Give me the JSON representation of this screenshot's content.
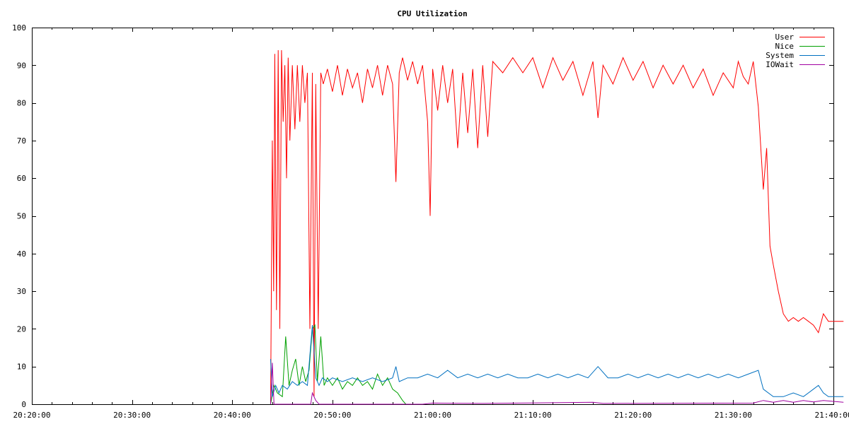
{
  "chart_data": {
    "type": "line",
    "title": "CPU Utilization",
    "xlabel": "",
    "ylabel": "",
    "xlim": [
      "20:20:00",
      "21:40:00"
    ],
    "ylim": [
      0,
      100
    ],
    "x_ticks": [
      "20:20:00",
      "20:30:00",
      "20:40:00",
      "20:50:00",
      "21:00:00",
      "21:10:00",
      "21:20:00",
      "21:30:00",
      "21:40:00"
    ],
    "y_ticks": [
      0,
      10,
      20,
      30,
      40,
      50,
      60,
      70,
      80,
      90,
      100
    ],
    "grid": false,
    "legend_position": "top-right",
    "series": [
      {
        "name": "User",
        "color": "#ff0000",
        "points": [
          [
            "20:43:50",
            0
          ],
          [
            "20:44:00",
            70
          ],
          [
            "20:44:08",
            30
          ],
          [
            "20:44:15",
            93
          ],
          [
            "20:44:25",
            25
          ],
          [
            "20:44:35",
            94
          ],
          [
            "20:44:45",
            20
          ],
          [
            "20:44:55",
            94
          ],
          [
            "20:45:05",
            75
          ],
          [
            "20:45:15",
            90
          ],
          [
            "20:45:25",
            60
          ],
          [
            "20:45:35",
            92
          ],
          [
            "20:45:45",
            70
          ],
          [
            "20:46:00",
            90
          ],
          [
            "20:46:15",
            73
          ],
          [
            "20:46:30",
            90
          ],
          [
            "20:46:45",
            75
          ],
          [
            "20:47:00",
            90
          ],
          [
            "20:47:15",
            80
          ],
          [
            "20:47:30",
            88
          ],
          [
            "20:47:45",
            20
          ],
          [
            "20:48:00",
            88
          ],
          [
            "20:48:10",
            2
          ],
          [
            "20:48:20",
            85
          ],
          [
            "20:48:35",
            20
          ],
          [
            "20:48:50",
            88
          ],
          [
            "20:49:05",
            85
          ],
          [
            "20:49:30",
            89
          ],
          [
            "20:50:00",
            83
          ],
          [
            "20:50:30",
            90
          ],
          [
            "20:51:00",
            82
          ],
          [
            "20:51:30",
            89
          ],
          [
            "20:52:00",
            84
          ],
          [
            "20:52:30",
            88
          ],
          [
            "20:53:00",
            80
          ],
          [
            "20:53:30",
            89
          ],
          [
            "20:54:00",
            84
          ],
          [
            "20:54:30",
            90
          ],
          [
            "20:55:00",
            82
          ],
          [
            "20:55:30",
            90
          ],
          [
            "20:56:00",
            85
          ],
          [
            "20:56:20",
            59
          ],
          [
            "20:56:40",
            88
          ],
          [
            "20:57:00",
            92
          ],
          [
            "20:57:30",
            86
          ],
          [
            "20:58:00",
            91
          ],
          [
            "20:58:30",
            85
          ],
          [
            "20:59:00",
            90
          ],
          [
            "20:59:30",
            75
          ],
          [
            "20:59:45",
            50
          ],
          [
            "21:00:00",
            89
          ],
          [
            "21:00:30",
            78
          ],
          [
            "21:01:00",
            90
          ],
          [
            "21:01:30",
            80
          ],
          [
            "21:02:00",
            89
          ],
          [
            "21:02:30",
            68
          ],
          [
            "21:03:00",
            88
          ],
          [
            "21:03:30",
            72
          ],
          [
            "21:04:00",
            89
          ],
          [
            "21:04:30",
            68
          ],
          [
            "21:05:00",
            90
          ],
          [
            "21:05:30",
            71
          ],
          [
            "21:06:00",
            91
          ],
          [
            "21:07:00",
            88
          ],
          [
            "21:08:00",
            92
          ],
          [
            "21:09:00",
            88
          ],
          [
            "21:10:00",
            92
          ],
          [
            "21:11:00",
            84
          ],
          [
            "21:12:00",
            92
          ],
          [
            "21:13:00",
            86
          ],
          [
            "21:14:00",
            91
          ],
          [
            "21:15:00",
            82
          ],
          [
            "21:16:00",
            91
          ],
          [
            "21:16:30",
            76
          ],
          [
            "21:17:00",
            90
          ],
          [
            "21:18:00",
            85
          ],
          [
            "21:19:00",
            92
          ],
          [
            "21:20:00",
            86
          ],
          [
            "21:21:00",
            91
          ],
          [
            "21:22:00",
            84
          ],
          [
            "21:23:00",
            90
          ],
          [
            "21:24:00",
            85
          ],
          [
            "21:25:00",
            90
          ],
          [
            "21:26:00",
            84
          ],
          [
            "21:27:00",
            89
          ],
          [
            "21:28:00",
            82
          ],
          [
            "21:29:00",
            88
          ],
          [
            "21:30:00",
            84
          ],
          [
            "21:30:30",
            91
          ],
          [
            "21:31:00",
            87
          ],
          [
            "21:31:30",
            85
          ],
          [
            "21:32:00",
            91
          ],
          [
            "21:32:30",
            79
          ],
          [
            "21:33:00",
            57
          ],
          [
            "21:33:20",
            68
          ],
          [
            "21:33:40",
            42
          ],
          [
            "21:34:00",
            37
          ],
          [
            "21:34:30",
            30
          ],
          [
            "21:35:00",
            24
          ],
          [
            "21:35:30",
            22
          ],
          [
            "21:36:00",
            23
          ],
          [
            "21:36:30",
            22
          ],
          [
            "21:37:00",
            23
          ],
          [
            "21:37:30",
            22
          ],
          [
            "21:38:00",
            21
          ],
          [
            "21:38:30",
            19
          ],
          [
            "21:39:00",
            24
          ],
          [
            "21:39:30",
            22
          ],
          [
            "21:40:00",
            22
          ],
          [
            "21:41:00",
            22
          ]
        ]
      },
      {
        "name": "Nice",
        "color": "#00a000",
        "points": [
          [
            "20:43:50",
            0
          ],
          [
            "20:44:10",
            5
          ],
          [
            "20:44:30",
            3
          ],
          [
            "20:45:00",
            2
          ],
          [
            "20:45:20",
            18
          ],
          [
            "20:45:40",
            5
          ],
          [
            "20:46:00",
            9
          ],
          [
            "20:46:20",
            12
          ],
          [
            "20:46:40",
            5
          ],
          [
            "20:47:00",
            10
          ],
          [
            "20:47:20",
            6
          ],
          [
            "20:47:40",
            9
          ],
          [
            "20:48:00",
            20
          ],
          [
            "20:48:15",
            21
          ],
          [
            "20:48:30",
            6
          ],
          [
            "20:48:50",
            18
          ],
          [
            "20:49:10",
            5
          ],
          [
            "20:49:30",
            7
          ],
          [
            "20:50:00",
            5
          ],
          [
            "20:50:30",
            7
          ],
          [
            "20:51:00",
            4
          ],
          [
            "20:51:30",
            6
          ],
          [
            "20:52:00",
            5
          ],
          [
            "20:52:30",
            7
          ],
          [
            "20:53:00",
            5
          ],
          [
            "20:53:30",
            6
          ],
          [
            "20:54:00",
            4
          ],
          [
            "20:54:30",
            8
          ],
          [
            "20:55:00",
            5
          ],
          [
            "20:55:30",
            7
          ],
          [
            "20:56:00",
            4
          ],
          [
            "20:56:30",
            3
          ],
          [
            "20:57:00",
            1
          ],
          [
            "20:57:20",
            0
          ]
        ]
      },
      {
        "name": "System",
        "color": "#0070c0",
        "points": [
          [
            "20:43:50",
            12
          ],
          [
            "20:44:00",
            2
          ],
          [
            "20:44:20",
            5
          ],
          [
            "20:44:40",
            3
          ],
          [
            "20:45:00",
            5
          ],
          [
            "20:45:30",
            4
          ],
          [
            "20:46:00",
            6
          ],
          [
            "20:46:30",
            5
          ],
          [
            "20:47:00",
            6
          ],
          [
            "20:47:30",
            5
          ],
          [
            "20:48:00",
            21
          ],
          [
            "20:48:20",
            7
          ],
          [
            "20:48:40",
            5
          ],
          [
            "20:49:00",
            7
          ],
          [
            "20:49:30",
            6
          ],
          [
            "20:50:00",
            7
          ],
          [
            "20:51:00",
            6
          ],
          [
            "20:52:00",
            7
          ],
          [
            "20:53:00",
            6
          ],
          [
            "20:54:00",
            7
          ],
          [
            "20:55:00",
            6
          ],
          [
            "20:56:00",
            7
          ],
          [
            "20:56:20",
            10
          ],
          [
            "20:56:40",
            6
          ],
          [
            "20:57:30",
            7
          ],
          [
            "20:58:30",
            7
          ],
          [
            "20:59:30",
            8
          ],
          [
            "21:00:30",
            7
          ],
          [
            "21:01:30",
            9
          ],
          [
            "21:02:30",
            7
          ],
          [
            "21:03:30",
            8
          ],
          [
            "21:04:30",
            7
          ],
          [
            "21:05:30",
            8
          ],
          [
            "21:06:30",
            7
          ],
          [
            "21:07:30",
            8
          ],
          [
            "21:08:30",
            7
          ],
          [
            "21:09:30",
            7
          ],
          [
            "21:10:30",
            8
          ],
          [
            "21:11:30",
            7
          ],
          [
            "21:12:30",
            8
          ],
          [
            "21:13:30",
            7
          ],
          [
            "21:14:30",
            8
          ],
          [
            "21:15:30",
            7
          ],
          [
            "21:16:30",
            10
          ],
          [
            "21:17:30",
            7
          ],
          [
            "21:18:30",
            7
          ],
          [
            "21:19:30",
            8
          ],
          [
            "21:20:30",
            7
          ],
          [
            "21:21:30",
            8
          ],
          [
            "21:22:30",
            7
          ],
          [
            "21:23:30",
            8
          ],
          [
            "21:24:30",
            7
          ],
          [
            "21:25:30",
            8
          ],
          [
            "21:26:30",
            7
          ],
          [
            "21:27:30",
            8
          ],
          [
            "21:28:30",
            7
          ],
          [
            "21:29:30",
            8
          ],
          [
            "21:30:30",
            7
          ],
          [
            "21:31:30",
            8
          ],
          [
            "21:32:30",
            9
          ],
          [
            "21:33:00",
            4
          ],
          [
            "21:34:00",
            2
          ],
          [
            "21:35:00",
            2
          ],
          [
            "21:36:00",
            3
          ],
          [
            "21:37:00",
            2
          ],
          [
            "21:38:00",
            4
          ],
          [
            "21:38:30",
            5
          ],
          [
            "21:39:00",
            3
          ],
          [
            "21:39:30",
            2
          ],
          [
            "21:41:00",
            2
          ]
        ]
      },
      {
        "name": "IOWait",
        "color": "#a000a0",
        "points": [
          [
            "20:43:50",
            0
          ],
          [
            "20:44:00",
            11
          ],
          [
            "20:44:10",
            0
          ],
          [
            "20:47:50",
            0
          ],
          [
            "20:48:00",
            3
          ],
          [
            "20:48:20",
            1
          ],
          [
            "20:48:40",
            0
          ],
          [
            "20:59:00",
            0
          ],
          [
            "21:00:00",
            0.3
          ],
          [
            "21:05:00",
            0.2
          ],
          [
            "21:16:00",
            0.5
          ],
          [
            "21:17:00",
            0.2
          ],
          [
            "21:32:00",
            0.3
          ],
          [
            "21:33:00",
            1
          ],
          [
            "21:34:00",
            0.5
          ],
          [
            "21:35:00",
            1
          ],
          [
            "21:36:00",
            0.5
          ],
          [
            "21:37:00",
            1
          ],
          [
            "21:38:00",
            0.6
          ],
          [
            "21:39:00",
            1
          ],
          [
            "21:41:00",
            0.5
          ]
        ]
      }
    ]
  }
}
